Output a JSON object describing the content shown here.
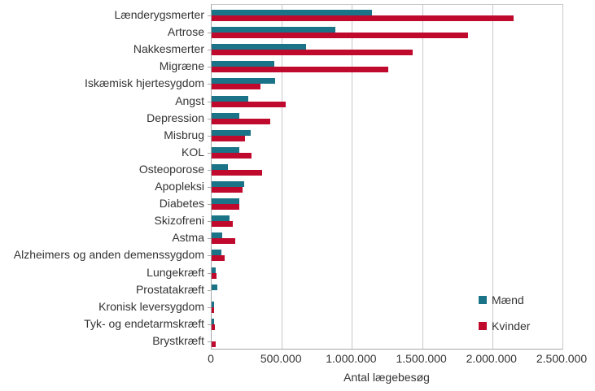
{
  "chart_data": {
    "type": "bar",
    "orientation": "horizontal",
    "title": "",
    "xlabel": "Antal lægebesøg",
    "ylabel": "",
    "xlim": [
      0,
      2500000
    ],
    "grid": "vertical",
    "legend_position": "right-lower",
    "xticks": [
      {
        "value": 0,
        "label": "0"
      },
      {
        "value": 500000,
        "label": "500.000"
      },
      {
        "value": 1000000,
        "label": "1.000.000"
      },
      {
        "value": 1500000,
        "label": "1.500.000"
      },
      {
        "value": 2000000,
        "label": "2.000.000"
      },
      {
        "value": 2500000,
        "label": "2.500.000"
      }
    ],
    "categories": [
      "Lænderygsmerter",
      "Artrose",
      "Nakkesmerter",
      "Migræne",
      "Iskæmisk hjertesygdom",
      "Angst",
      "Depression",
      "Misbrug",
      "KOL",
      "Osteoporose",
      "Apopleksi",
      "Diabetes",
      "Skizofreni",
      "Astma",
      "Alzheimers og anden demenssygdom",
      "Lungekræft",
      "Prostatakræft",
      "Kronisk leversygdom",
      "Tyk- og endetarmskræft",
      "Brystkræft"
    ],
    "series": [
      {
        "name": "Mænd",
        "color": "#1A7387",
        "values": [
          1140000,
          880000,
          675000,
          445000,
          450000,
          260000,
          200000,
          280000,
          200000,
          115000,
          230000,
          200000,
          125000,
          75000,
          70000,
          30000,
          40000,
          20000,
          20000,
          0
        ]
      },
      {
        "name": "Kvinder",
        "color": "#C00A2D",
        "values": [
          2150000,
          1830000,
          1430000,
          1260000,
          350000,
          525000,
          415000,
          235000,
          285000,
          360000,
          220000,
          195000,
          150000,
          170000,
          95000,
          35000,
          0,
          20000,
          25000,
          30000
        ]
      }
    ]
  },
  "colors": {
    "grid": "#C8C8C8",
    "axis": "#A6A6A6",
    "text": "#333333",
    "background": "#FFFFFF"
  }
}
